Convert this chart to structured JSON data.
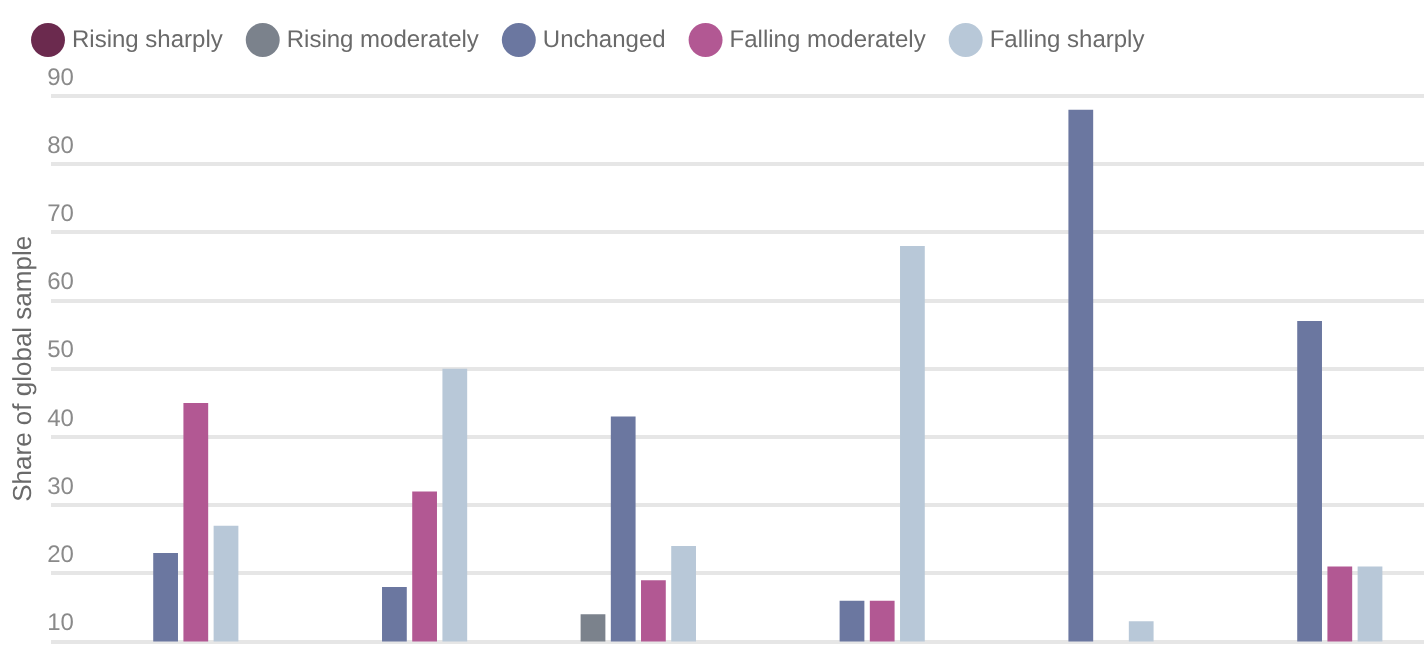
{
  "chart_data": {
    "type": "bar",
    "ylabel": "Share of global sample",
    "categories": [
      null,
      null,
      null,
      null,
      null,
      null
    ],
    "series": [
      {
        "name": "Rising sharply",
        "color": "#6b2a4e",
        "values": [
          null,
          null,
          null,
          null,
          null,
          null
        ]
      },
      {
        "name": "Rising moderately",
        "color": "#7b828c",
        "values": [
          null,
          null,
          14,
          null,
          null,
          null
        ]
      },
      {
        "name": "Unchanged",
        "color": "#6b77a0",
        "values": [
          23,
          18,
          43,
          16,
          88,
          57
        ]
      },
      {
        "name": "Falling moderately",
        "color": "#b25893",
        "values": [
          45,
          32,
          19,
          16,
          null,
          21
        ]
      },
      {
        "name": "Falling sharply",
        "color": "#b8c8d8",
        "values": [
          27,
          50,
          24,
          68,
          13,
          21
        ]
      }
    ],
    "ylim": [
      10,
      90
    ],
    "yticks": [
      10,
      20,
      30,
      40,
      50,
      60,
      70,
      80,
      90
    ],
    "grid": "y",
    "legend": "top",
    "tick_labels": "y"
  }
}
